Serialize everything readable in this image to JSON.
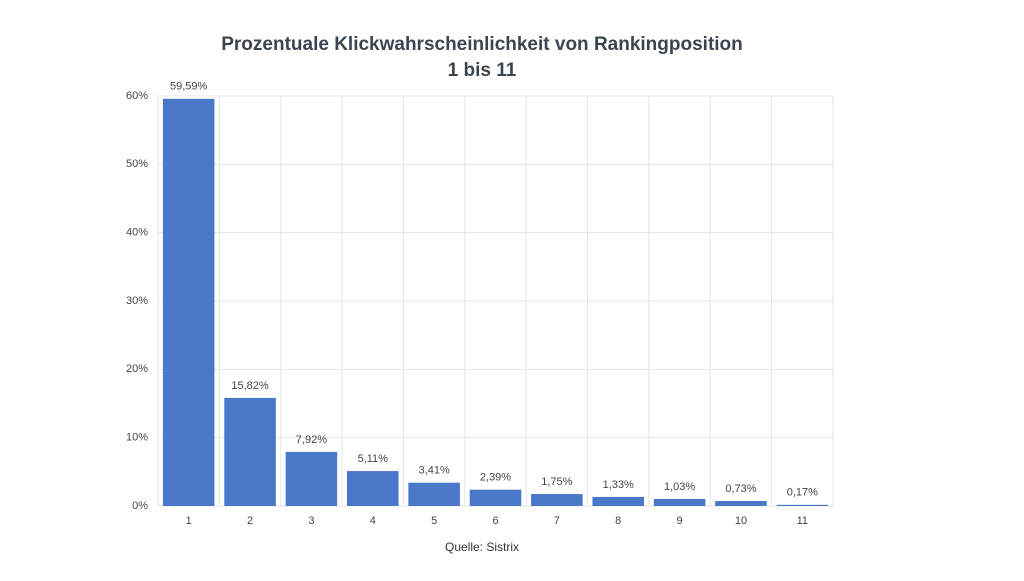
{
  "chart_data": {
    "type": "bar",
    "title": [
      "Prozentuale Klickwahrscheinlichkeit  von Rankingposition",
      "1 bis 11"
    ],
    "categories": [
      "1",
      "2",
      "3",
      "4",
      "5",
      "6",
      "7",
      "8",
      "9",
      "10",
      "11"
    ],
    "values": [
      59.59,
      15.82,
      7.92,
      5.11,
      3.41,
      2.39,
      1.75,
      1.33,
      1.03,
      0.73,
      0.17
    ],
    "value_labels": [
      "59,59%",
      "15,82%",
      "7,92%",
      "5,11%",
      "3,41%",
      "2,39%",
      "1,75%",
      "1,33%",
      "1,03%",
      "0,73%",
      "0,17%"
    ],
    "color": "#4a78c8",
    "ylim": [
      0,
      60
    ],
    "yticks": [
      {
        "value": 0,
        "label": "0%"
      },
      {
        "value": 10,
        "label": "10%"
      },
      {
        "value": 20,
        "label": "20%"
      },
      {
        "value": 30,
        "label": "30%"
      },
      {
        "value": 40,
        "label": "40%"
      },
      {
        "value": 50,
        "label": "50%"
      },
      {
        "value": 60,
        "label": "60%"
      }
    ],
    "grid": true,
    "source": "Quelle: Sistrix"
  }
}
